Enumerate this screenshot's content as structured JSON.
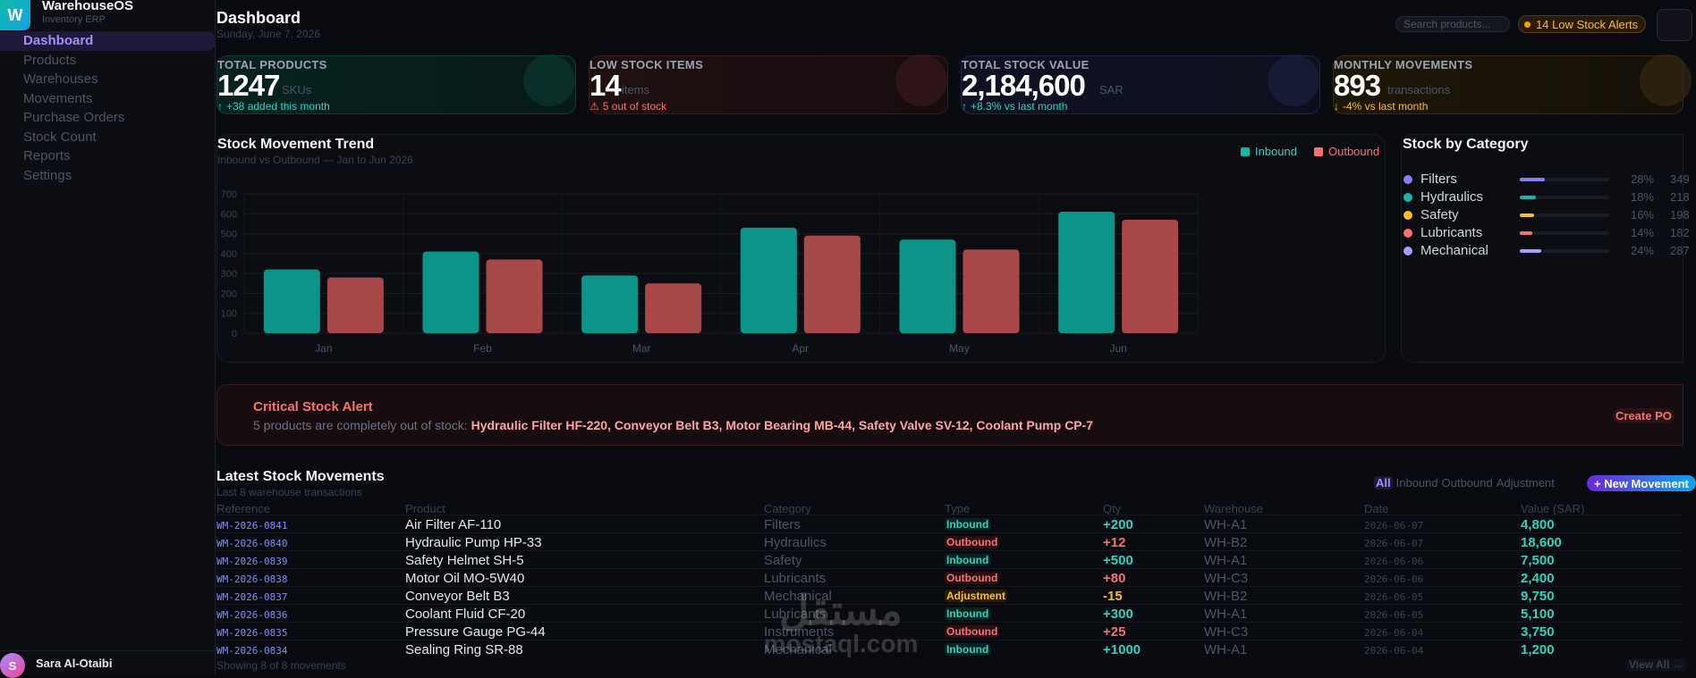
{
  "brand": {
    "logo": "W",
    "name": "WarehouseOS",
    "subtitle": "Inventory ERP"
  },
  "nav": [
    {
      "label": "Dashboard",
      "active": true
    },
    {
      "label": "Products"
    },
    {
      "label": "Warehouses"
    },
    {
      "label": "Movements"
    },
    {
      "label": "Purchase Orders"
    },
    {
      "label": "Stock Count"
    },
    {
      "label": "Reports"
    },
    {
      "label": "Settings"
    }
  ],
  "user": {
    "initial": "S",
    "name": "Sara Al-Otaibi"
  },
  "header": {
    "title": "Dashboard",
    "date": "Sunday, June 7, 2026",
    "search_placeholder": "Search products...",
    "alerts_label": "14 Low Stock Alerts"
  },
  "kpis": [
    {
      "label": "TOTAL PRODUCTS",
      "value": "1247",
      "unit": "SKUs",
      "delta": "+38 added this month",
      "delta_icon": "↑",
      "delta_color": "#2dd4bf"
    },
    {
      "label": "LOW STOCK ITEMS",
      "value": "14",
      "unit": "items",
      "delta": "5 out of stock",
      "delta_icon": "⚠",
      "delta_color": "#f87171"
    },
    {
      "label": "TOTAL STOCK VALUE",
      "value": "2,184,600",
      "unit": "SAR",
      "delta": "+8.3% vs last month",
      "delta_icon": "↑",
      "delta_color": "#2dd4bf"
    },
    {
      "label": "MONTHLY MOVEMENTS",
      "value": "893",
      "unit": "transactions",
      "delta": "-4% vs last month",
      "delta_icon": "↓",
      "delta_color": "#fbbf24"
    }
  ],
  "trend": {
    "title": "Stock Movement Trend",
    "subtitle": "Inbound vs Outbound — Jan to Jun 2026",
    "legend": [
      {
        "name": "Inbound",
        "color": "#14b8a6"
      },
      {
        "name": "Outbound",
        "color": "#f87171"
      }
    ]
  },
  "chart_data": {
    "type": "bar",
    "categories": [
      "Jan",
      "Feb",
      "Mar",
      "Apr",
      "May",
      "Jun"
    ],
    "series": [
      {
        "name": "Inbound",
        "values": [
          320,
          410,
          290,
          530,
          470,
          610
        ],
        "color": "#0d9488"
      },
      {
        "name": "Outbound",
        "values": [
          280,
          370,
          250,
          490,
          420,
          570
        ],
        "color": "#a94848"
      }
    ],
    "ylim": [
      0,
      700
    ],
    "yticks": [
      0,
      100,
      200,
      300,
      400,
      500,
      600,
      700
    ],
    "grid": true,
    "legend_position": "top-right"
  },
  "categories_panel": {
    "title": "Stock by Category",
    "items": [
      {
        "name": "Filters",
        "pct": "28%",
        "value": 28,
        "qty": "349",
        "color": "#8b7cf6"
      },
      {
        "name": "Hydraulics",
        "pct": "18%",
        "value": 18,
        "qty": "218",
        "color": "#14b8a6"
      },
      {
        "name": "Safety",
        "pct": "16%",
        "value": 16,
        "qty": "198",
        "color": "#fbbf24"
      },
      {
        "name": "Lubricants",
        "pct": "14%",
        "value": 14,
        "qty": "182",
        "color": "#f87171"
      },
      {
        "name": "Mechanical",
        "pct": "24%",
        "value": 24,
        "qty": "287",
        "color": "#a5a0f5"
      }
    ]
  },
  "alert": {
    "title": "Critical Stock Alert",
    "text": "5 products are completely out of stock: ",
    "items": "Hydraulic Filter HF-220, Conveyor Belt B3, Motor Bearing MB-44, Safety Valve SV-12, Coolant Pump CP-7",
    "button": "Create PO"
  },
  "movements": {
    "title": "Latest Stock Movements",
    "subtitle": "Last 8 warehouse transactions",
    "filters": [
      "All",
      "Inbound",
      "Outbound",
      "Adjustment"
    ],
    "new_button": "+ New Movement",
    "columns": [
      "Reference",
      "Product",
      "Category",
      "Type",
      "Qty",
      "Warehouse",
      "Date",
      "Value (SAR)"
    ],
    "rows": [
      {
        "ref": "WM-2026-0841",
        "product": "Air Filter AF-110",
        "category": "Filters",
        "type": "Inbound",
        "qty": "+200",
        "warehouse": "WH-A1",
        "date": "2026-06-07",
        "value": "4,800"
      },
      {
        "ref": "WM-2026-0840",
        "product": "Hydraulic Pump HP-33",
        "category": "Hydraulics",
        "type": "Outbound",
        "qty": "+12",
        "warehouse": "WH-B2",
        "date": "2026-06-07",
        "value": "18,600"
      },
      {
        "ref": "WM-2026-0839",
        "product": "Safety Helmet SH-5",
        "category": "Safety",
        "type": "Inbound",
        "qty": "+500",
        "warehouse": "WH-A1",
        "date": "2026-06-06",
        "value": "7,500"
      },
      {
        "ref": "WM-2026-0838",
        "product": "Motor Oil MO-5W40",
        "category": "Lubricants",
        "type": "Outbound",
        "qty": "+80",
        "warehouse": "WH-C3",
        "date": "2026-06-06",
        "value": "2,400"
      },
      {
        "ref": "WM-2026-0837",
        "product": "Conveyor Belt B3",
        "category": "Mechanical",
        "type": "Adjustment",
        "qty": "-15",
        "warehouse": "WH-B2",
        "date": "2026-06-05",
        "value": "9,750"
      },
      {
        "ref": "WM-2026-0836",
        "product": "Coolant Fluid CF-20",
        "category": "Lubricants",
        "type": "Inbound",
        "qty": "+300",
        "warehouse": "WH-A1",
        "date": "2026-06-05",
        "value": "5,100"
      },
      {
        "ref": "WM-2026-0835",
        "product": "Pressure Gauge PG-44",
        "category": "Instruments",
        "type": "Outbound",
        "qty": "+25",
        "warehouse": "WH-C3",
        "date": "2026-06-04",
        "value": "3,750"
      },
      {
        "ref": "WM-2026-0834",
        "product": "Sealing Ring SR-88",
        "category": "Mechanical",
        "type": "Inbound",
        "qty": "+1000",
        "warehouse": "WH-A1",
        "date": "2026-06-04",
        "value": "1,200"
      }
    ],
    "footer": "Showing 8 of 8 movements",
    "view_all": "View All →"
  },
  "watermark": {
    "arabic": "مستقل",
    "latin": "mostaql.com"
  }
}
